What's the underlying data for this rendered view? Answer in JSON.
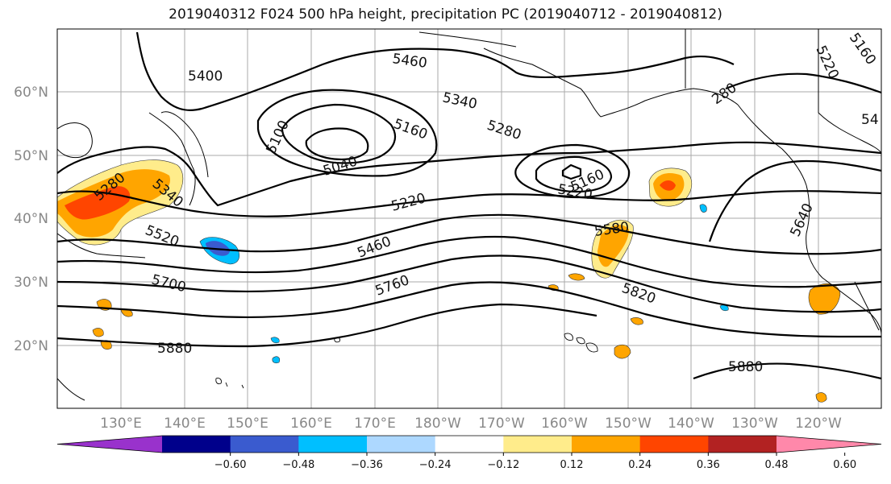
{
  "title": "2019040312 F024 500 hPa height, precipitation PC (2019040712 - 2019040812)",
  "latitude_labels": [
    "60°N",
    "50°N",
    "40°N",
    "30°N",
    "20°N"
  ],
  "longitude_labels": [
    "130°E",
    "140°E",
    "150°E",
    "160°E",
    "170°E",
    "180°W",
    "170°W",
    "160°W",
    "150°W",
    "140°W",
    "130°W",
    "120°W"
  ],
  "contour_labels": [
    "5400",
    "5460",
    "5340",
    "5160",
    "5100",
    "5040",
    "5280",
    "5220",
    "5280",
    "5340",
    "5520",
    "5700",
    "5460",
    "5760",
    "5220",
    "5160",
    "5580",
    "5820",
    "5880",
    "5880",
    "280",
    "5220",
    "5160",
    "54",
    "5640"
  ],
  "colorbar": {
    "colors": [
      "#9932cc",
      "#00008b",
      "#3a5bcf",
      "#00bfff",
      "#add8ff",
      "#ffffff",
      "#ffec8b",
      "#ffa500",
      "#ff4500",
      "#b22222",
      "#ff88aa"
    ],
    "ticks": [
      "−0.60",
      "−0.48",
      "−0.36",
      "−0.24",
      "−0.12",
      "0.12",
      "0.24",
      "0.36",
      "0.48",
      "0.60"
    ]
  },
  "map_colors": {
    "positive_low": "#ffec8b",
    "positive_mid": "#ffa500",
    "positive_high": "#ff4500",
    "negative": "#00bfff",
    "grid": "#aaaaaa",
    "contour": "#000000"
  }
}
